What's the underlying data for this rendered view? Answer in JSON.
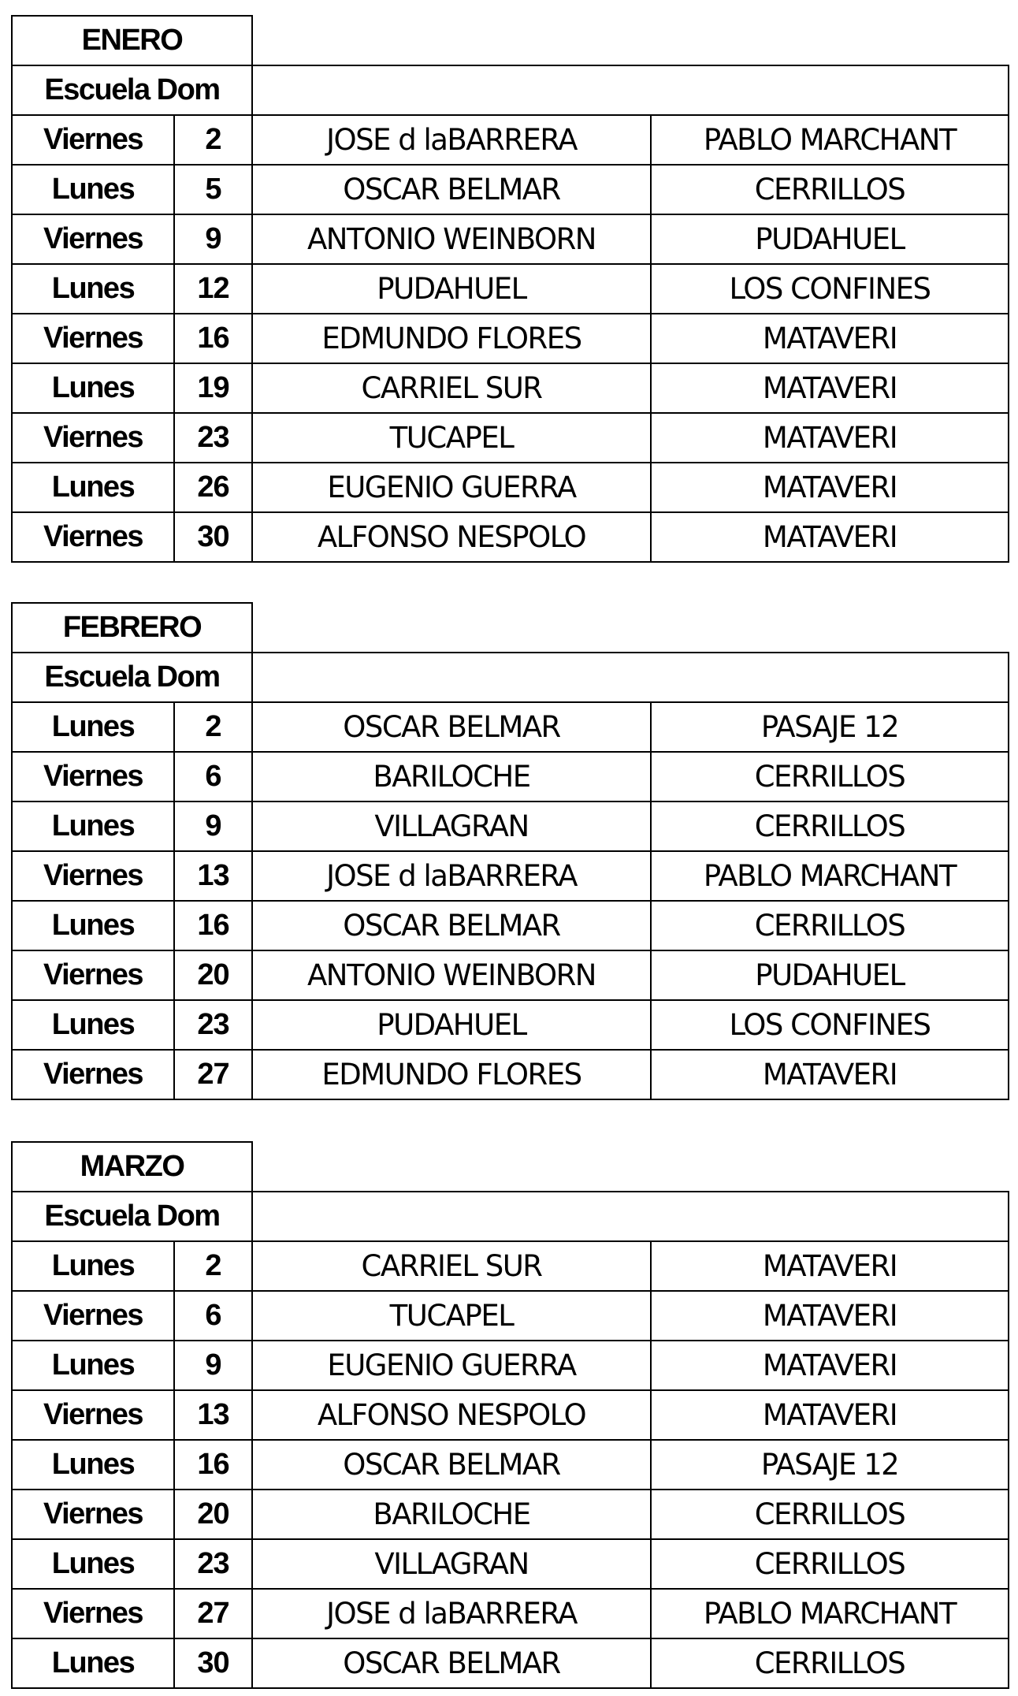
{
  "months": [
    {
      "title": "ENERO",
      "subtitle": "Escuela Dom",
      "rows": [
        {
          "day": "Viernes",
          "date": "2",
          "name": "JOSE d laBARRERA",
          "place": "PABLO MARCHANT"
        },
        {
          "day": "Lunes",
          "date": "5",
          "name": "OSCAR BELMAR",
          "place": "CERRILLOS"
        },
        {
          "day": "Viernes",
          "date": "9",
          "name": "ANTONIO WEINBORN",
          "place": "PUDAHUEL"
        },
        {
          "day": "Lunes",
          "date": "12",
          "name": "PUDAHUEL",
          "place": "LOS CONFINES"
        },
        {
          "day": "Viernes",
          "date": "16",
          "name": "EDMUNDO FLORES",
          "place": "MATAVERI"
        },
        {
          "day": "Lunes",
          "date": "19",
          "name": "CARRIEL SUR",
          "place": "MATAVERI"
        },
        {
          "day": "Viernes",
          "date": "23",
          "name": "TUCAPEL",
          "place": "MATAVERI"
        },
        {
          "day": "Lunes",
          "date": "26",
          "name": "EUGENIO GUERRA",
          "place": "MATAVERI"
        },
        {
          "day": "Viernes",
          "date": "30",
          "name": "ALFONSO NESPOLO",
          "place": "MATAVERI"
        }
      ]
    },
    {
      "title": "FEBRERO",
      "subtitle": "Escuela Dom",
      "rows": [
        {
          "day": "Lunes",
          "date": "2",
          "name": "OSCAR BELMAR",
          "place": "PASAJE 12"
        },
        {
          "day": "Viernes",
          "date": "6",
          "name": "BARILOCHE",
          "place": "CERRILLOS"
        },
        {
          "day": "Lunes",
          "date": "9",
          "name": "VILLAGRAN",
          "place": "CERRILLOS"
        },
        {
          "day": "Viernes",
          "date": "13",
          "name": "JOSE d laBARRERA",
          "place": "PABLO MARCHANT"
        },
        {
          "day": "Lunes",
          "date": "16",
          "name": "OSCAR BELMAR",
          "place": "CERRILLOS"
        },
        {
          "day": "Viernes",
          "date": "20",
          "name": "ANTONIO WEINBORN",
          "place": "PUDAHUEL"
        },
        {
          "day": "Lunes",
          "date": "23",
          "name": "PUDAHUEL",
          "place": "LOS CONFINES"
        },
        {
          "day": "Viernes",
          "date": "27",
          "name": "EDMUNDO FLORES",
          "place": "MATAVERI"
        }
      ]
    },
    {
      "title": "MARZO",
      "subtitle": "Escuela Dom",
      "rows": [
        {
          "day": "Lunes",
          "date": "2",
          "name": "CARRIEL SUR",
          "place": "MATAVERI"
        },
        {
          "day": "Viernes",
          "date": "6",
          "name": "TUCAPEL",
          "place": "MATAVERI"
        },
        {
          "day": "Lunes",
          "date": "9",
          "name": "EUGENIO GUERRA",
          "place": "MATAVERI"
        },
        {
          "day": "Viernes",
          "date": "13",
          "name": "ALFONSO NESPOLO",
          "place": "MATAVERI"
        },
        {
          "day": "Lunes",
          "date": "16",
          "name": "OSCAR BELMAR",
          "place": "PASAJE 12"
        },
        {
          "day": "Viernes",
          "date": "20",
          "name": "BARILOCHE",
          "place": "CERRILLOS"
        },
        {
          "day": "Lunes",
          "date": "23",
          "name": "VILLAGRAN",
          "place": "CERRILLOS"
        },
        {
          "day": "Viernes",
          "date": "27",
          "name": "JOSE d laBARRERA",
          "place": "PABLO MARCHANT"
        },
        {
          "day": "Lunes",
          "date": "30",
          "name": "OSCAR BELMAR",
          "place": "CERRILLOS"
        }
      ]
    }
  ]
}
